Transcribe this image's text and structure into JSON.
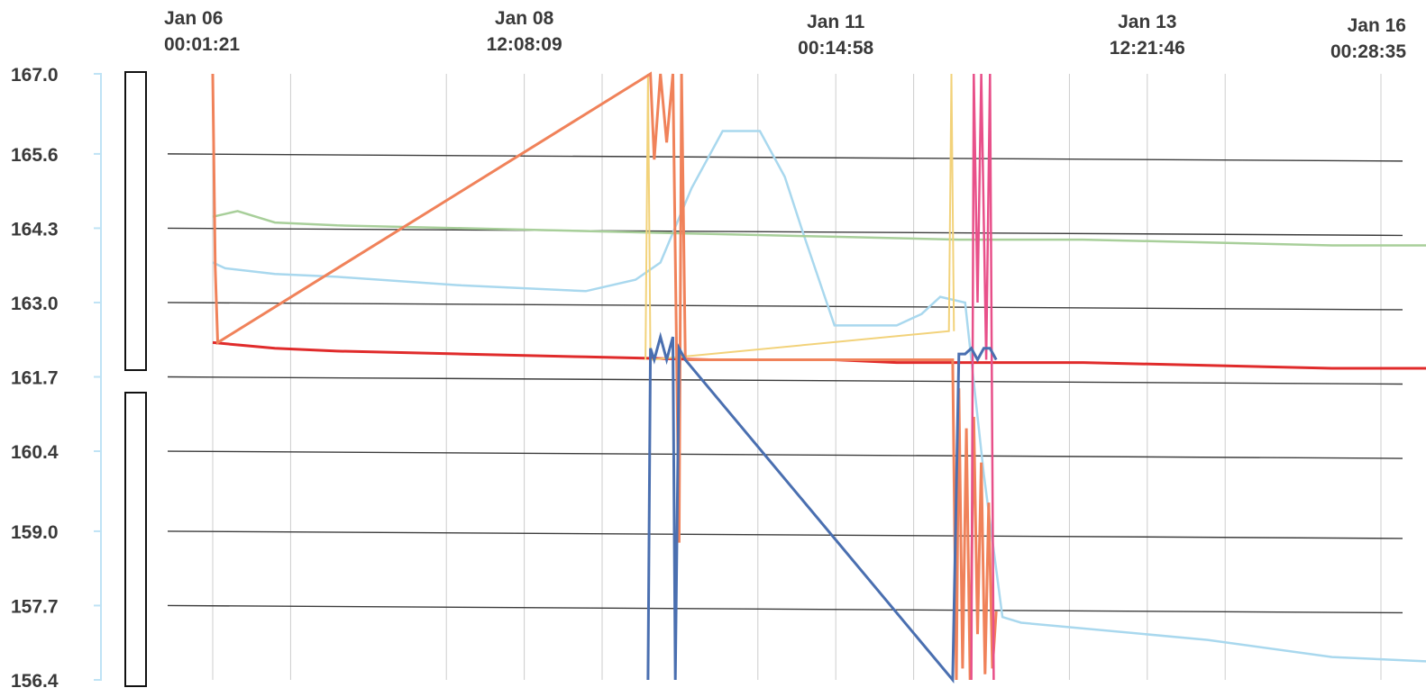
{
  "chart_data": {
    "type": "line",
    "title": "",
    "xlabel": "",
    "ylabel": "",
    "x_tick_labels": [
      {
        "date": "Jan 06",
        "time": "00:01:21"
      },
      {
        "date": "Jan 08",
        "time": "12:08:09"
      },
      {
        "date": "Jan 11",
        "time": "00:14:58"
      },
      {
        "date": "Jan 13",
        "time": "12:21:46"
      },
      {
        "date": "Jan 16",
        "time": "00:28:35"
      }
    ],
    "xlim": [
      "Jan 06 00:01:21",
      "Jan 16 00:28:35"
    ],
    "y_tick_labels": [
      "167.0",
      "165.6",
      "164.3",
      "163.0",
      "161.7",
      "160.4",
      "159.0",
      "157.7",
      "156.4"
    ],
    "ylim": [
      156.4,
      167.0
    ],
    "grid": true,
    "colors": {
      "grid_major": "#3c3c3c",
      "grid_minor": "#cccccc",
      "axis_left": "#bfe3f5",
      "red": "#e02b2b",
      "green": "#a8cf9a",
      "light_blue": "#a9d8ee",
      "dark_blue": "#4a6fb0",
      "salmon": "#f0825a",
      "pink": "#e8508a",
      "yellow": "#f2d27a"
    },
    "series": [
      {
        "color": "red",
        "type": "line",
        "x": [
          0.0,
          0.5,
          1.0,
          2.0,
          3.0,
          4.0,
          5.0,
          5.5,
          6.0,
          7.0,
          8.0,
          9.0,
          10.02
        ],
        "y": [
          162.3,
          162.2,
          162.15,
          162.1,
          162.05,
          162.0,
          162.0,
          161.95,
          161.95,
          161.95,
          161.9,
          161.85,
          161.85
        ]
      },
      {
        "color": "green",
        "type": "line",
        "x": [
          0.0,
          0.2,
          0.5,
          1.0,
          2.0,
          3.0,
          4.0,
          5.0,
          6.0,
          7.0,
          8.0,
          9.0,
          10.02
        ],
        "y": [
          164.5,
          164.6,
          164.4,
          164.35,
          164.3,
          164.25,
          164.2,
          164.15,
          164.1,
          164.1,
          164.05,
          164.0,
          164.0
        ]
      },
      {
        "color": "light_blue",
        "type": "line",
        "x": [
          0.0,
          0.1,
          0.5,
          1.0,
          2.0,
          3.0,
          3.4,
          3.6,
          3.85,
          4.1,
          4.4,
          4.6,
          4.75,
          5.0,
          5.5,
          5.7,
          5.85,
          6.05,
          6.2,
          6.35,
          6.5,
          7.0,
          8.0,
          9.0,
          10.02
        ],
        "y": [
          163.7,
          163.6,
          163.5,
          163.45,
          163.3,
          163.2,
          163.4,
          163.7,
          165.0,
          166.0,
          166.0,
          165.2,
          164.2,
          162.6,
          162.6,
          162.8,
          163.1,
          163.0,
          160.0,
          157.5,
          157.4,
          157.3,
          157.1,
          156.8,
          156.7
        ]
      },
      {
        "color": "dark_blue",
        "type": "line",
        "x": [
          3.5,
          3.52,
          3.55,
          3.6,
          3.65,
          3.7,
          3.72,
          3.75,
          3.8,
          5.95,
          6.0,
          6.05,
          6.1,
          6.15,
          6.2,
          6.25,
          6.3
        ],
        "y": [
          156.4,
          162.2,
          162.0,
          162.4,
          162.0,
          162.4,
          156.4,
          162.2,
          162.0,
          156.4,
          162.1,
          162.1,
          162.2,
          162.0,
          162.2,
          162.2,
          162.0
        ]
      },
      {
        "color": "salmon",
        "type": "line",
        "x": [
          0.0,
          0.02,
          0.04,
          3.52,
          3.55,
          3.6,
          3.65,
          3.7,
          3.75,
          3.77,
          3.8,
          5.95,
          5.98,
          6.0,
          6.03,
          6.06,
          6.09,
          6.12,
          6.15,
          6.18,
          6.21,
          6.24,
          6.27,
          6.3
        ],
        "y": [
          167.0,
          163.6,
          162.3,
          167.0,
          165.5,
          167.0,
          165.8,
          167.0,
          158.8,
          167.0,
          162.0,
          162.0,
          156.4,
          161.5,
          156.6,
          160.8,
          156.4,
          161.0,
          157.2,
          160.2,
          156.5,
          159.5,
          156.6,
          157.6
        ]
      },
      {
        "color": "pink",
        "type": "line",
        "x": [
          6.1,
          6.12,
          6.15,
          6.18,
          6.22,
          6.25,
          6.28
        ],
        "y": [
          156.4,
          167.0,
          163.0,
          167.0,
          162.0,
          167.0,
          156.4
        ]
      },
      {
        "color": "yellow",
        "type": "line",
        "x": [
          3.48,
          3.5,
          3.52,
          5.92,
          5.94,
          5.96
        ],
        "y": [
          162.0,
          167.0,
          162.0,
          162.5,
          167.0,
          162.5
        ]
      }
    ]
  }
}
